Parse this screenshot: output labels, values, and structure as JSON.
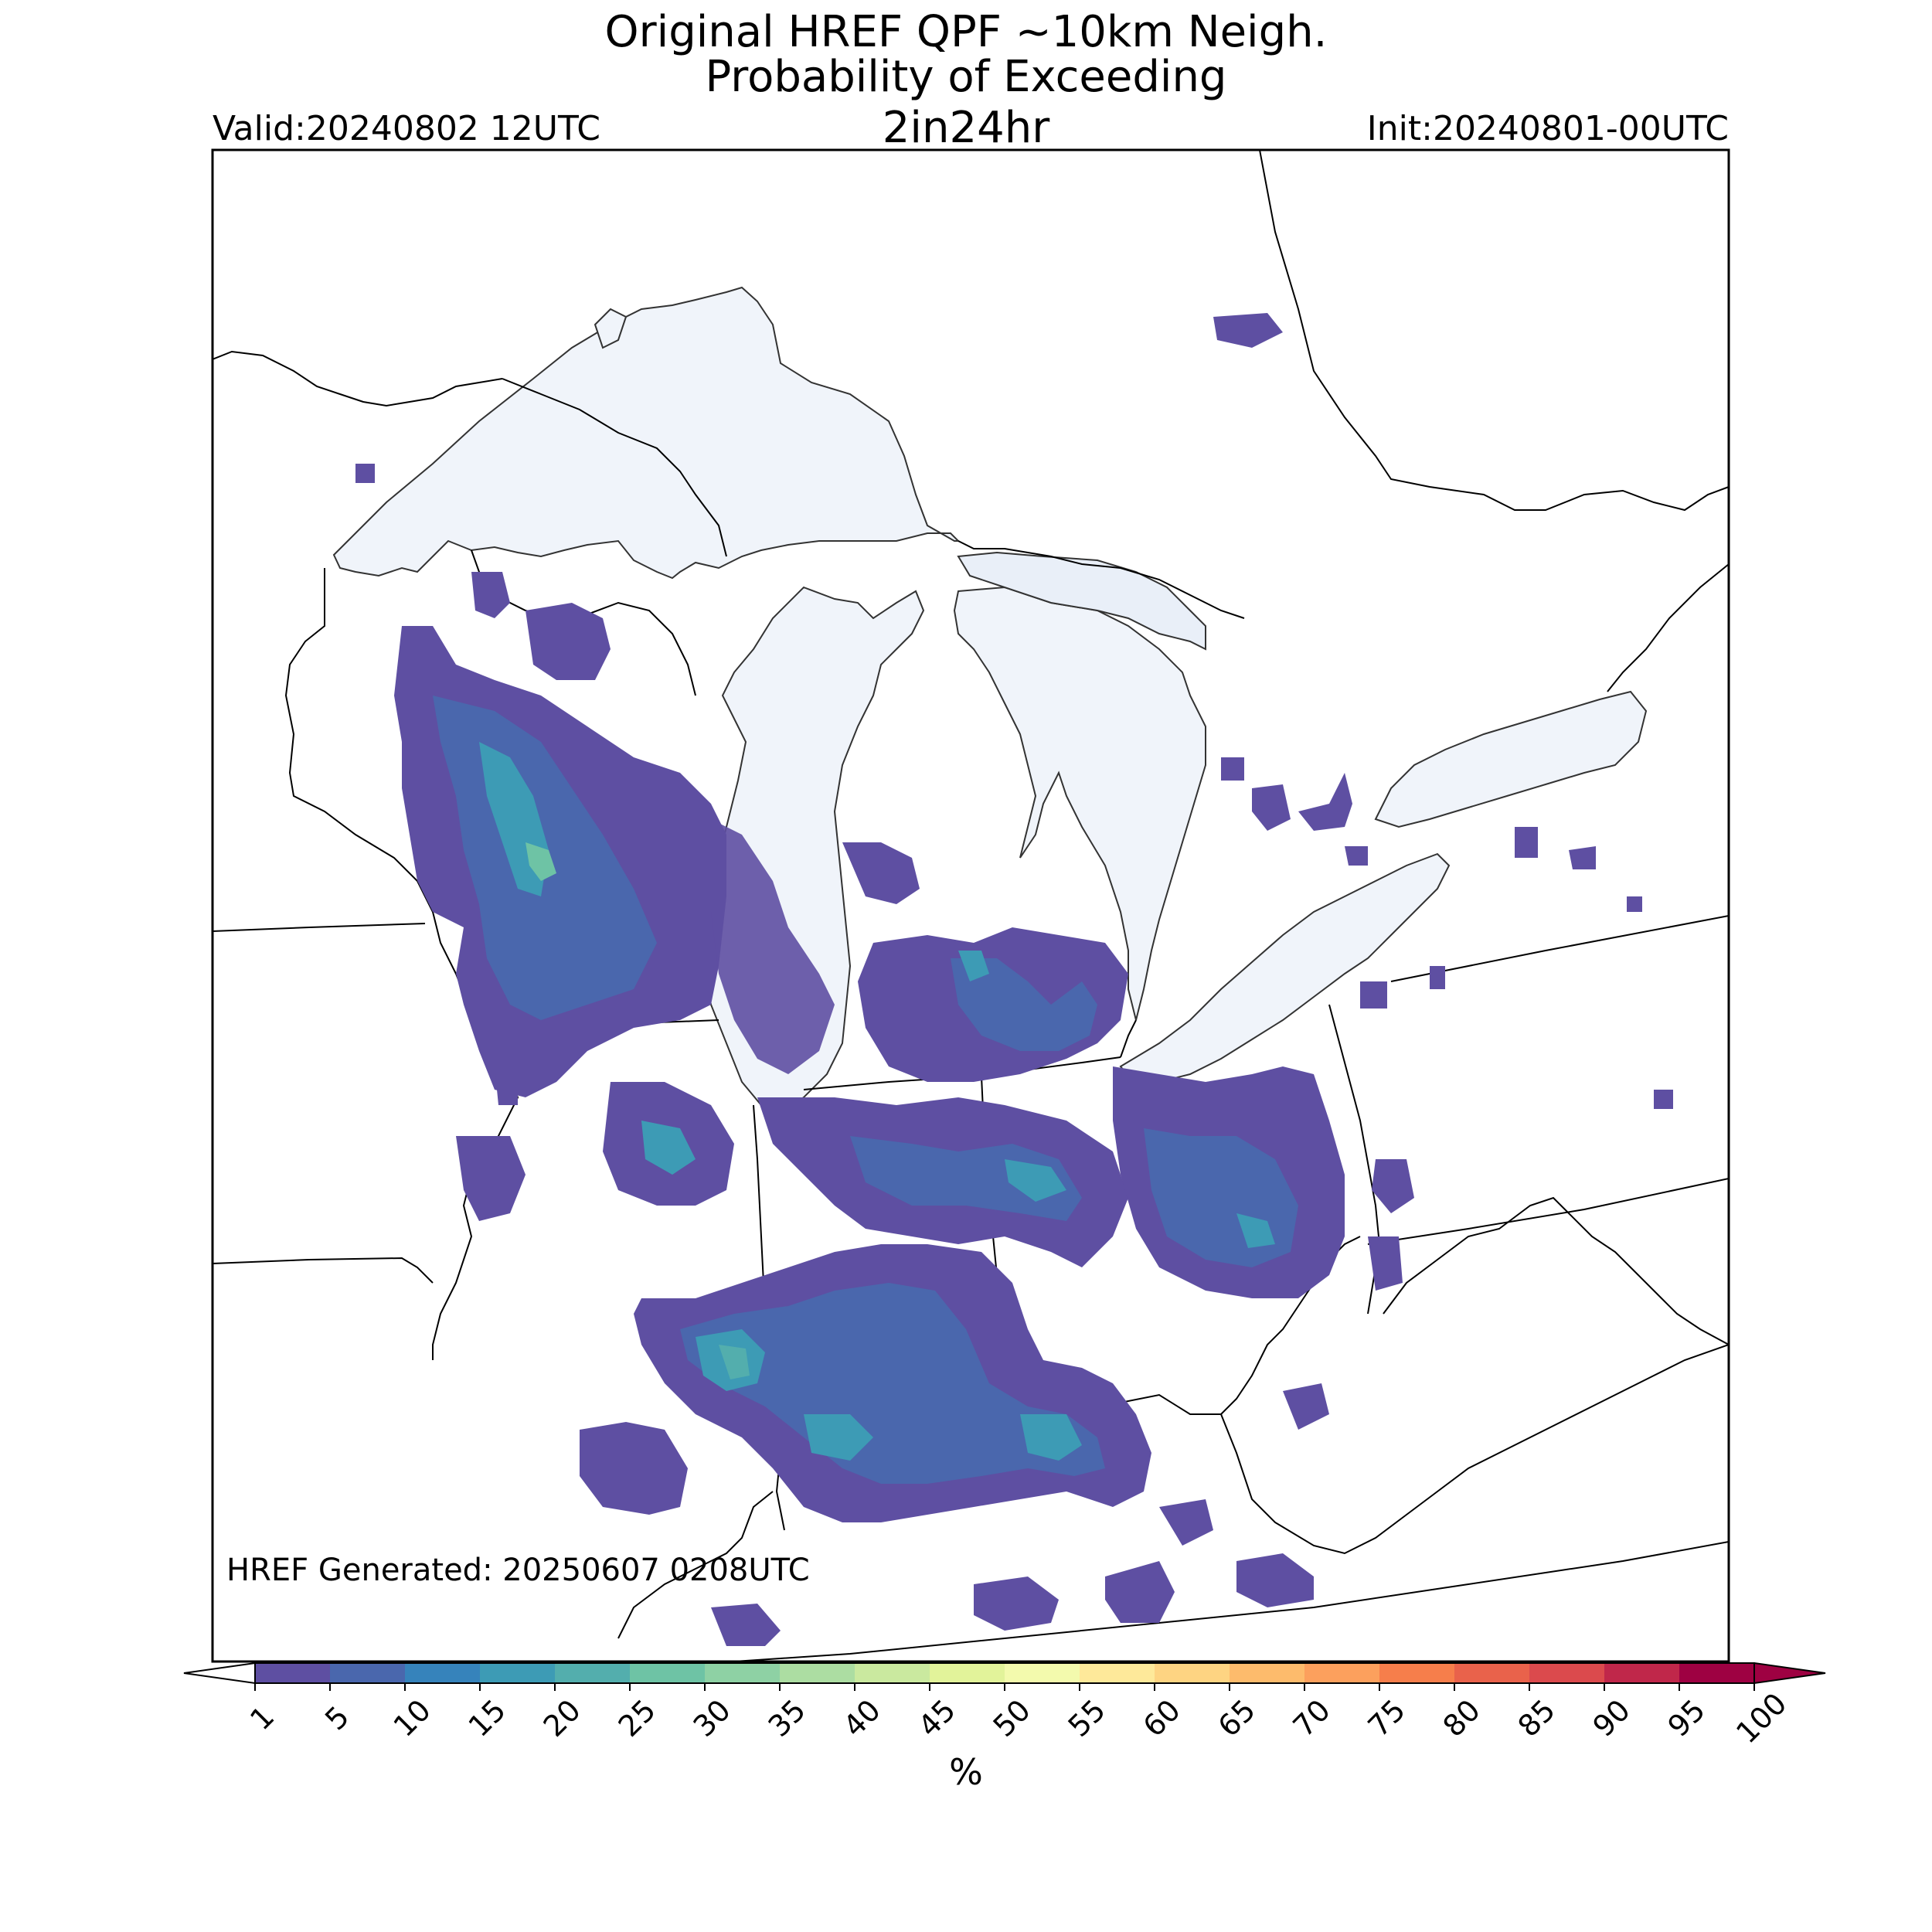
{
  "header": {
    "title_line1": "Original HREF QPF ~10km Neigh.",
    "title_line2": "Probability of Exceeding",
    "title_line3": "2in24hr",
    "valid_label": "Valid:20240802 12UTC",
    "init_label": "Init:20240801-00UTC"
  },
  "footer": {
    "generated_label": "HREF Generated: 20250607 0208UTC"
  },
  "colorbar": {
    "unit_label": "%",
    "levels": [
      "1",
      "5",
      "10",
      "15",
      "20",
      "25",
      "30",
      "35",
      "40",
      "45",
      "50",
      "55",
      "60",
      "65",
      "70",
      "75",
      "80",
      "85",
      "90",
      "95",
      "100"
    ],
    "colors": [
      "#5e4fa2",
      "#4a67ad",
      "#3683bb",
      "#3d9bb5",
      "#53aead",
      "#6ec3a5",
      "#8ed1a4",
      "#acdda2",
      "#cae99f",
      "#e2f39a",
      "#f3faad",
      "#fee99a",
      "#fed482",
      "#fdbb6c",
      "#fca05d",
      "#f67e4b",
      "#e9624b",
      "#db4a4d",
      "#c0274a",
      "#9e0142"
    ],
    "under_color": "#ffffff",
    "over_color": "#9e0142"
  },
  "map": {
    "region": "Upper Midwest / Great Lakes / Ohio Valley",
    "water_color": "#f0f4fa",
    "border_color": "#000000",
    "prob_colors": {
      "p1": "#5e4fa2",
      "p5": "#4a67ad",
      "p10": "#3683bb",
      "p20": "#53aead",
      "p25": "#6ec3a5"
    }
  }
}
